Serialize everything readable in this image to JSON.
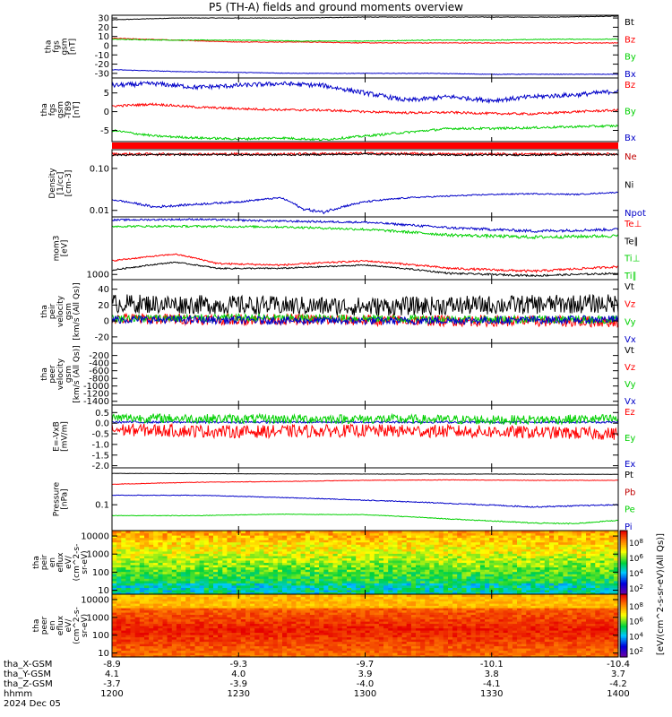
{
  "title": "P5 (TH-A) fields and ground moments overview",
  "chart_data": [
    {
      "type": "line",
      "id": "fgs",
      "ylabel": [
        "tha",
        "fgs",
        "gsm",
        "[nT]"
      ],
      "ylim": [
        -35,
        33
      ],
      "yticks": [
        30,
        20,
        10,
        0,
        -10,
        -20,
        -30
      ],
      "legend": [
        "Bt",
        "Bz",
        "By",
        "Bx"
      ],
      "series": [
        {
          "name": "Bt",
          "color": "#000000",
          "x": [
            0,
            15,
            30,
            45,
            60,
            75,
            90,
            105,
            120
          ],
          "y": [
            28,
            30,
            30,
            30,
            31,
            31,
            31,
            31,
            32
          ],
          "noise": 0.3
        },
        {
          "name": "Bz",
          "color": "#ff0000",
          "x": [
            0,
            15,
            30,
            45,
            60,
            75,
            90,
            105,
            120
          ],
          "y": [
            8,
            6,
            4,
            4,
            3,
            3,
            3,
            3,
            3
          ],
          "noise": 0.4
        },
        {
          "name": "By",
          "color": "#00d000",
          "x": [
            0,
            15,
            30,
            45,
            60,
            75,
            90,
            105,
            120
          ],
          "y": [
            7,
            6,
            6,
            5,
            5,
            6,
            6,
            7,
            7
          ],
          "noise": 0.4
        },
        {
          "name": "Bx",
          "color": "#0000c8",
          "x": [
            0,
            15,
            30,
            45,
            60,
            75,
            90,
            105,
            120
          ],
          "y": [
            -26,
            -28,
            -29,
            -30,
            -30,
            -30,
            -31,
            -31,
            -31
          ],
          "noise": 0.3
        }
      ]
    },
    {
      "type": "line",
      "id": "fgs_dsl",
      "ylabel": [
        "tha",
        "fgs",
        "gsm",
        "-T89",
        "[nT]"
      ],
      "ylim": [
        -8,
        9
      ],
      "yticks": [
        5,
        0,
        -5
      ],
      "legend": [
        "Bz",
        "By",
        "Bx"
      ],
      "series": [
        {
          "name": "Bz",
          "color": "#0000c8",
          "x": [
            0,
            10,
            20,
            30,
            40,
            50,
            60,
            70,
            80,
            90,
            100,
            110,
            120
          ],
          "y": [
            7,
            7.5,
            6.5,
            7,
            7.5,
            7,
            5,
            3,
            4,
            3,
            4,
            4.5,
            5.5
          ],
          "noise": 0.6
        },
        {
          "name": "By",
          "color": "#ff0000",
          "x": [
            0,
            10,
            20,
            30,
            40,
            50,
            60,
            70,
            80,
            90,
            100,
            110,
            120
          ],
          "y": [
            1.5,
            2,
            1.2,
            0.8,
            0.5,
            0.4,
            0,
            -0.3,
            -0.2,
            -0.5,
            -0.6,
            0,
            0.4
          ],
          "noise": 0.3
        },
        {
          "name": "Bx",
          "color": "#00d000",
          "x": [
            0,
            10,
            20,
            30,
            40,
            50,
            60,
            70,
            80,
            90,
            100,
            110,
            120
          ],
          "y": [
            -5,
            -6.5,
            -7,
            -7.3,
            -7,
            -7.5,
            -6.5,
            -5.5,
            -4.5,
            -4.5,
            -4.3,
            -4,
            -3.8
          ],
          "noise": 0.3
        }
      ]
    },
    {
      "type": "line",
      "id": "density",
      "log": true,
      "ylabel": [
        "Density",
        "[1/cc]",
        "[cm-3]"
      ],
      "ylim": [
        0.007,
        0.28
      ],
      "yticks": [
        0.1,
        0.01
      ],
      "ticklabels": [
        "0.10",
        "0.01"
      ],
      "legend": [
        "Ne",
        "Ni",
        "Npot"
      ],
      "series": [
        {
          "name": "Ne",
          "color": "#ff0000",
          "x": [
            0,
            20,
            40,
            60,
            80,
            100,
            120
          ],
          "y": [
            0.22,
            0.22,
            0.22,
            0.23,
            0.22,
            0.22,
            0.22
          ],
          "noise": 0.015
        },
        {
          "name": "Ni",
          "color": "#000000",
          "x": [
            0,
            20,
            40,
            60,
            80,
            100,
            120
          ],
          "y": [
            0.21,
            0.215,
            0.21,
            0.22,
            0.21,
            0.21,
            0.215
          ],
          "noise": 0.01
        },
        {
          "name": "Npot",
          "color": "#0000c8",
          "x": [
            0,
            10,
            20,
            30,
            40,
            45,
            50,
            60,
            70,
            80,
            90,
            100,
            110,
            120
          ],
          "y": [
            0.018,
            0.012,
            0.014,
            0.016,
            0.02,
            0.011,
            0.009,
            0.016,
            0.02,
            0.022,
            0.024,
            0.025,
            0.024,
            0.027
          ],
          "noise": 0.0008
        }
      ]
    },
    {
      "type": "line",
      "id": "temperature",
      "log": true,
      "ylabel": [
        "mom3",
        "[eV]"
      ],
      "ylim": [
        800,
        12000
      ],
      "yticks": [
        1000
      ],
      "ticklabels": [
        "1000"
      ],
      "legend": [
        "Te⊥",
        "Te∥",
        "Ti⊥",
        "Ti∥"
      ],
      "series": [
        {
          "name": "Te⊥",
          "color": "#0000c8",
          "x": [
            0,
            20,
            40,
            60,
            80,
            100,
            120
          ],
          "y": [
            10500,
            10800,
            10000,
            9500,
            7500,
            6500,
            7000
          ],
          "noise": 400
        },
        {
          "name": "Te∥",
          "color": "#00d000",
          "x": [
            0,
            20,
            40,
            60,
            80,
            100,
            120
          ],
          "y": [
            8000,
            8000,
            7800,
            7000,
            5500,
            5000,
            5300
          ],
          "noise": 350
        },
        {
          "name": "Ti⊥",
          "color": "#ff0000",
          "x": [
            0,
            15,
            25,
            40,
            60,
            80,
            100,
            120
          ],
          "y": [
            1800,
            2400,
            1600,
            1500,
            1800,
            1300,
            1150,
            1400
          ],
          "noise": 60
        },
        {
          "name": "Ti∥",
          "color": "#000000",
          "x": [
            0,
            15,
            25,
            40,
            60,
            80,
            100,
            120
          ],
          "y": [
            1200,
            1700,
            1300,
            1300,
            1500,
            1050,
            950,
            1050
          ],
          "noise": 40
        }
      ]
    },
    {
      "type": "line",
      "id": "peir_velocity",
      "ylabel": [
        "tha",
        "peir",
        "velocity",
        "gsm",
        "[km/s (All Qs)]"
      ],
      "ylim": [
        -28,
        52
      ],
      "yticks": [
        40,
        20,
        0,
        -20
      ],
      "legend": [
        "Vt",
        "Vz",
        "Vy",
        "Vx"
      ],
      "series": [
        {
          "name": "Vt",
          "color": "#000000",
          "x": [
            0,
            30,
            60,
            90,
            120
          ],
          "y": [
            22,
            20,
            18,
            20,
            22
          ],
          "noise": 12
        },
        {
          "name": "Vz",
          "color": "#ff0000",
          "x": [
            0,
            30,
            60,
            90,
            120
          ],
          "y": [
            3,
            2,
            1,
            0,
            -1
          ],
          "noise": 7
        },
        {
          "name": "Vy",
          "color": "#00d000",
          "x": [
            0,
            30,
            60,
            90,
            120
          ],
          "y": [
            3,
            4,
            3,
            2,
            2
          ],
          "noise": 5
        },
        {
          "name": "Vx",
          "color": "#0000c8",
          "x": [
            0,
            30,
            60,
            90,
            120
          ],
          "y": [
            2,
            1,
            0,
            1,
            2
          ],
          "noise": 5
        }
      ]
    },
    {
      "type": "line",
      "id": "peer_velocity",
      "ylabel": [
        "tha",
        "peer",
        "velocity",
        "gsm",
        "[km/s (All Qs)]"
      ],
      "ylim": [
        -1500,
        120
      ],
      "yticks": [
        -200,
        -400,
        -600,
        -800,
        -1000,
        -1200,
        -1400
      ],
      "legend": [
        "Vt",
        "Vz",
        "Vy",
        "Vx"
      ],
      "series": []
    },
    {
      "type": "line",
      "id": "efield",
      "ylabel": [
        "E=-VxB",
        "[mV/m]"
      ],
      "ylim": [
        -2.1,
        0.85
      ],
      "yticks": [
        0.5,
        0.0,
        -0.5,
        -1.0,
        -1.5,
        -2.0
      ],
      "ticklabels": [
        "0.5",
        "0.0",
        "-0.5",
        "-1.0",
        "-1.5",
        "-2.0"
      ],
      "legend": [
        "Ez",
        "Ey",
        "Ex"
      ],
      "series": [
        {
          "name": "Ex",
          "color": "#0000c8",
          "x": [
            0,
            60,
            120
          ],
          "y": [
            0.05,
            0.05,
            0.05
          ],
          "noise": 0.05
        },
        {
          "name": "Ey",
          "color": "#00d000",
          "x": [
            0,
            30,
            60,
            90,
            120
          ],
          "y": [
            0.25,
            0.2,
            0.2,
            0.15,
            0.2
          ],
          "noise": 0.22
        },
        {
          "name": "Ez",
          "color": "#ff0000",
          "x": [
            0,
            30,
            60,
            90,
            120
          ],
          "y": [
            -0.3,
            -0.4,
            -0.35,
            -0.4,
            -0.5
          ],
          "noise": 0.3
        }
      ]
    },
    {
      "type": "line",
      "id": "pressure",
      "log": true,
      "ylabel": [
        "Pressure",
        "[nPa]"
      ],
      "ylim": [
        0.015,
        1.5
      ],
      "yticks": [
        0.1
      ],
      "ticklabels": [
        "0.1"
      ],
      "legend": [
        "Pt",
        "Pb",
        "Pe",
        "Pi"
      ],
      "series": [
        {
          "name": "Pt",
          "color": "#000000",
          "x": [
            0,
            30,
            60,
            90,
            120
          ],
          "y": [
            1.0,
            0.97,
            0.95,
            0.95,
            0.93
          ],
          "noise": 0.01
        },
        {
          "name": "Pb",
          "color": "#ff0000",
          "x": [
            0,
            20,
            40,
            60,
            80,
            100,
            120
          ],
          "y": [
            0.45,
            0.52,
            0.55,
            0.6,
            0.62,
            0.6,
            0.6
          ],
          "noise": 0.01
        },
        {
          "name": "Pe",
          "color": "#0000c8",
          "x": [
            0,
            20,
            40,
            60,
            80,
            100,
            120
          ],
          "y": [
            0.2,
            0.2,
            0.17,
            0.14,
            0.11,
            0.085,
            0.1
          ],
          "noise": 0.004
        },
        {
          "name": "Pi",
          "color": "#00d000",
          "x": [
            0,
            20,
            40,
            60,
            80,
            100,
            110,
            120
          ],
          "y": [
            0.045,
            0.045,
            0.05,
            0.048,
            0.035,
            0.026,
            0.025,
            0.032
          ],
          "noise": 0.001
        }
      ]
    },
    {
      "type": "heatmap",
      "id": "peir_eflux",
      "log": true,
      "ylabel": [
        "tha",
        "peir",
        "en",
        "eflux",
        "eV/",
        "(cm^2-s-",
        "sr-eV)"
      ],
      "ylim": [
        6,
        20000
      ],
      "yticks": [
        10000,
        1000,
        100,
        10
      ],
      "ticklabels": [
        "10000",
        "1000",
        "100",
        "10"
      ],
      "zrange": [
        100,
        1000000000
      ],
      "colorbar_ticks": [
        "10^8",
        "10^6",
        "10^4",
        "10^2"
      ]
    },
    {
      "type": "heatmap",
      "id": "peer_eflux",
      "log": true,
      "ylabel": [
        "tha",
        "peer",
        "en",
        "eflux",
        "eV/",
        "(cm^2-s-",
        "sr-eV)"
      ],
      "ylim": [
        6,
        20000
      ],
      "yticks": [
        10000,
        1000,
        100,
        10
      ],
      "ticklabels": [
        "10000",
        "1000",
        "100",
        "10"
      ],
      "zrange": [
        100,
        1000000000
      ],
      "colorbar_ticks": [
        "10^8",
        "10^6",
        "10^4",
        "10^2"
      ]
    }
  ],
  "colorbar_label": "[eV/(cm^2-s-sr-eV)(All Qs)]",
  "time_axis": {
    "x_range_min": [
      0,
      120
    ],
    "ticks_min": [
      0,
      30,
      60,
      90,
      120
    ],
    "row_labels": [
      "tha_X-GSM",
      "tha_Y-GSM",
      "tha_Z-GSM",
      "hhmm",
      "2024 Dec 05"
    ],
    "rows": [
      [
        "-8.9",
        "-9.3",
        "-9.7",
        "-10.1",
        "-10.4"
      ],
      [
        "4.1",
        "4.0",
        "3.9",
        "3.8",
        "3.7"
      ],
      [
        "-3.7",
        "-3.9",
        "-4.0",
        "-4.1",
        "-4.2"
      ],
      [
        "1200",
        "1230",
        "1300",
        "1330",
        "1400"
      ]
    ]
  }
}
